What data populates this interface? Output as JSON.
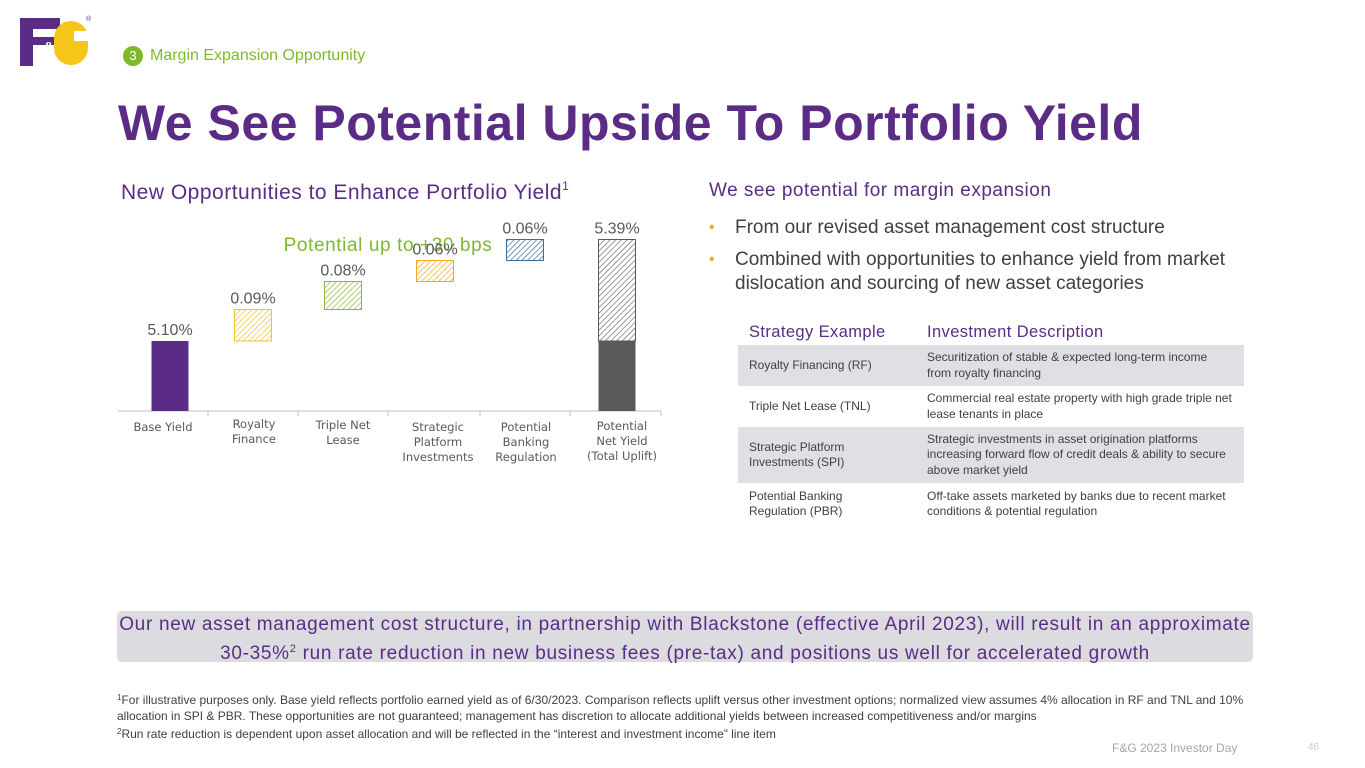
{
  "logo": {
    "text": "F&G"
  },
  "section": {
    "number": "3",
    "label": "Margin Expansion Opportunity"
  },
  "title": "We See Potential Upside To Portfolio Yield",
  "left": {
    "heading": "New Opportunities to Enhance Portfolio Yield",
    "heading_sup": "1",
    "chart_subtitle": "Potential up to +30 bps"
  },
  "chart_data": {
    "type": "bar",
    "subtype": "waterfall",
    "title": "Potential up to +30 bps",
    "categories": [
      [
        "Base Yield"
      ],
      [
        "Royalty",
        "Finance"
      ],
      [
        "Triple Net",
        "Lease"
      ],
      [
        "Strategic",
        "Platform",
        "Investments"
      ],
      [
        "Potential",
        "Banking",
        "Regulation"
      ],
      [
        "Potential",
        "Net Yield",
        "(Total Uplift)"
      ]
    ],
    "values": [
      5.1,
      0.09,
      0.08,
      0.06,
      0.06,
      5.39
    ],
    "labels": [
      "5.10%",
      "0.09%",
      "0.08%",
      "0.06%",
      "0.06%",
      "5.39%"
    ],
    "uplift": 0.29,
    "colors": {
      "base": "#5b2c86",
      "royalty": "#f2c12e",
      "tnl": "#8cb83a",
      "spi": "#f5a623",
      "pbr": "#3d6b9c",
      "total": "#595959",
      "total_hatch": "#595959"
    },
    "xlabel": "",
    "ylabel": ""
  },
  "right": {
    "heading": "We see potential for margin expansion",
    "bullets": [
      "From our revised asset management cost structure",
      "Combined with opportunities to enhance yield from market dislocation and sourcing of new asset categories"
    ]
  },
  "strategy_table": {
    "headers": [
      "Strategy Example",
      "Investment Description"
    ],
    "rows": [
      [
        "Royalty Financing (RF)",
        "Securitization of stable & expected long-term income from royalty financing"
      ],
      [
        "Triple Net Lease (TNL)",
        "Commercial real estate property with high grade triple net lease tenants in place"
      ],
      [
        "Strategic Platform Investments (SPI)",
        "Strategic investments in asset origination platforms increasing forward flow of credit deals & ability to secure above market yield"
      ],
      [
        "Potential Banking Regulation (PBR)",
        "Off-take assets marketed by banks due to recent market conditions & potential regulation"
      ]
    ]
  },
  "callout": {
    "text_before": "Our new asset management cost structure, in partnership with Blackstone (effective April 2023), will result in an approximate 30-35%",
    "sup": "2",
    "text_after": " run rate reduction in new business fees (pre-tax) and positions us well for accelerated growth"
  },
  "footnotes": [
    {
      "num": "1",
      "text": "For illustrative purposes only.  Base yield reflects portfolio earned yield as of 6/30/2023.  Comparison reflects uplift versus other investment options; normalized view assumes 4% allocation in RF and TNL and 10% allocation in SPI & PBR.  These opportunities are not guaranteed; management has discretion to allocate additional yields between increased competitiveness and/or margins"
    },
    {
      "num": "2",
      "text": "Run rate reduction is dependent upon asset allocation and will be reflected in the “interest and investment income” line item"
    }
  ],
  "footer": {
    "text": "F&G 2023 Investor Day",
    "page": "46"
  }
}
